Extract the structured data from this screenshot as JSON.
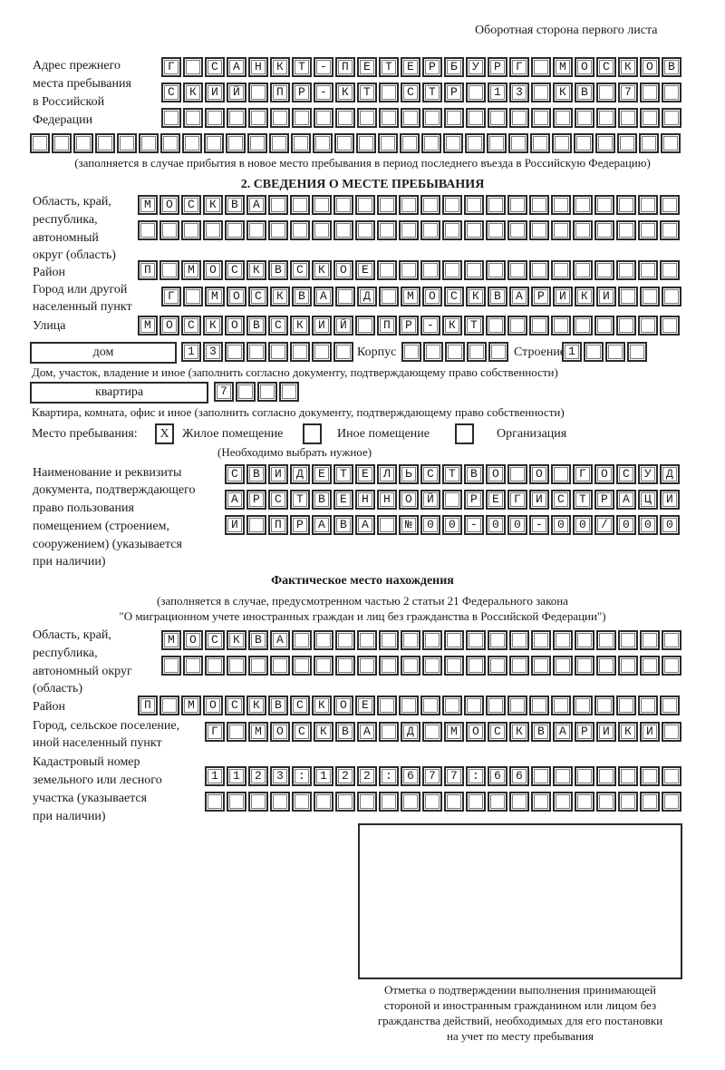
{
  "header": {
    "page_side": "Оборотная сторона первого листа"
  },
  "prev_address": {
    "label_lines": [
      "Адрес прежнего",
      "места пребывания",
      "в Российской",
      "Федерации"
    ],
    "rows": [
      "Г САНКТ-ПЕТЕРБУРГ МОСКОВ",
      "СКИЙ ПР-КТ СТР 13 КВ 7  ",
      "                        ",
      "                              "
    ],
    "note": "(заполняется в случае прибытия в новое место пребывания в период последнего въезда в Российскую Федерацию)"
  },
  "section2": {
    "title": "2. СВЕДЕНИЯ О МЕСТЕ ПРЕБЫВАНИЯ",
    "region_label_lines": [
      "Область, край,",
      "республика,",
      "автономный",
      "округ (область)"
    ],
    "region_rows": [
      "МОСКВА                   ",
      "                         "
    ],
    "district_label": "Район",
    "district_row": "П МОСКВСКОЕ              ",
    "city_label_lines": [
      "Город или другой",
      "населенный пункт"
    ],
    "city_row": "Г МОСКВА Д МОСКВАРИКИ   ",
    "street_label": "Улица",
    "street_row": "МОСКОВСКИЙ ПР-КТ         ",
    "house_type": "дом",
    "house_row": "13      ",
    "korpus_label": "Корпус",
    "korpus_row": "     ",
    "stroenie_label": "Строение",
    "stroenie_row": "1   ",
    "house_caption": "Дом, участок, владение и иное (заполнить согласно документу, подтверждающему право собственности)",
    "flat_type": "квартира",
    "flat_row": "7   ",
    "flat_caption": "Квартира, комната, офис и иное (заполнить согласно документу, подтверждающему право собственности)",
    "stay_place_label": "Место пребывания:",
    "options": [
      {
        "label": "Жилое помещение",
        "mark": "X"
      },
      {
        "label": "Иное помещение",
        "mark": ""
      },
      {
        "label": "Организация",
        "mark": ""
      }
    ],
    "choose_note": "(Необходимо выбрать нужное)",
    "doc_label_lines": [
      "Наименование и реквизиты",
      "документа, подтверждающего",
      "право пользования",
      "помещением (строением,",
      "сооружением) (указывается",
      "при наличии)"
    ],
    "doc_rows": [
      "СВИДЕТЕЛЬСТВО О ГОСУД",
      "АРСТВЕННОЙ РЕГИСТРАЦИ",
      "И ПРАВА №00-00-00/000"
    ]
  },
  "actual": {
    "title": "Фактическое место нахождения",
    "note_lines": [
      "(заполняется в случае, предусмотренном частью 2 статьи 21 Федерального закона",
      "\"О миграционном учете иностранных граждан и лиц без гражданства в Российской Федерации\")"
    ],
    "region_label_lines": [
      "Область, край,",
      "республика,",
      "автономный округ",
      "(область)"
    ],
    "region_rows": [
      "МОСКВА                  ",
      "                        "
    ],
    "district_label": "Район",
    "district_row": "П МОСКВСКОЕ              ",
    "city_label_lines": [
      "Город, сельское поселение,",
      "иной населенный пункт"
    ],
    "city_row": "Г МОСКВА Д МОСКВАРИКИ ",
    "cadastre_label_lines": [
      "Кадастровый номер",
      "земельного или лесного",
      "участка (указывается",
      "при наличии)"
    ],
    "cadastre_rows": [
      "1123:122:677:66       ",
      "                      "
    ]
  },
  "stamp": {
    "caption_lines": [
      "Отметка о подтверждении выполнения принимающей",
      "стороной и иностранным гражданином или лицом без",
      "гражданства действий, необходимых для его постановки",
      "на учет по месту пребывания"
    ]
  }
}
